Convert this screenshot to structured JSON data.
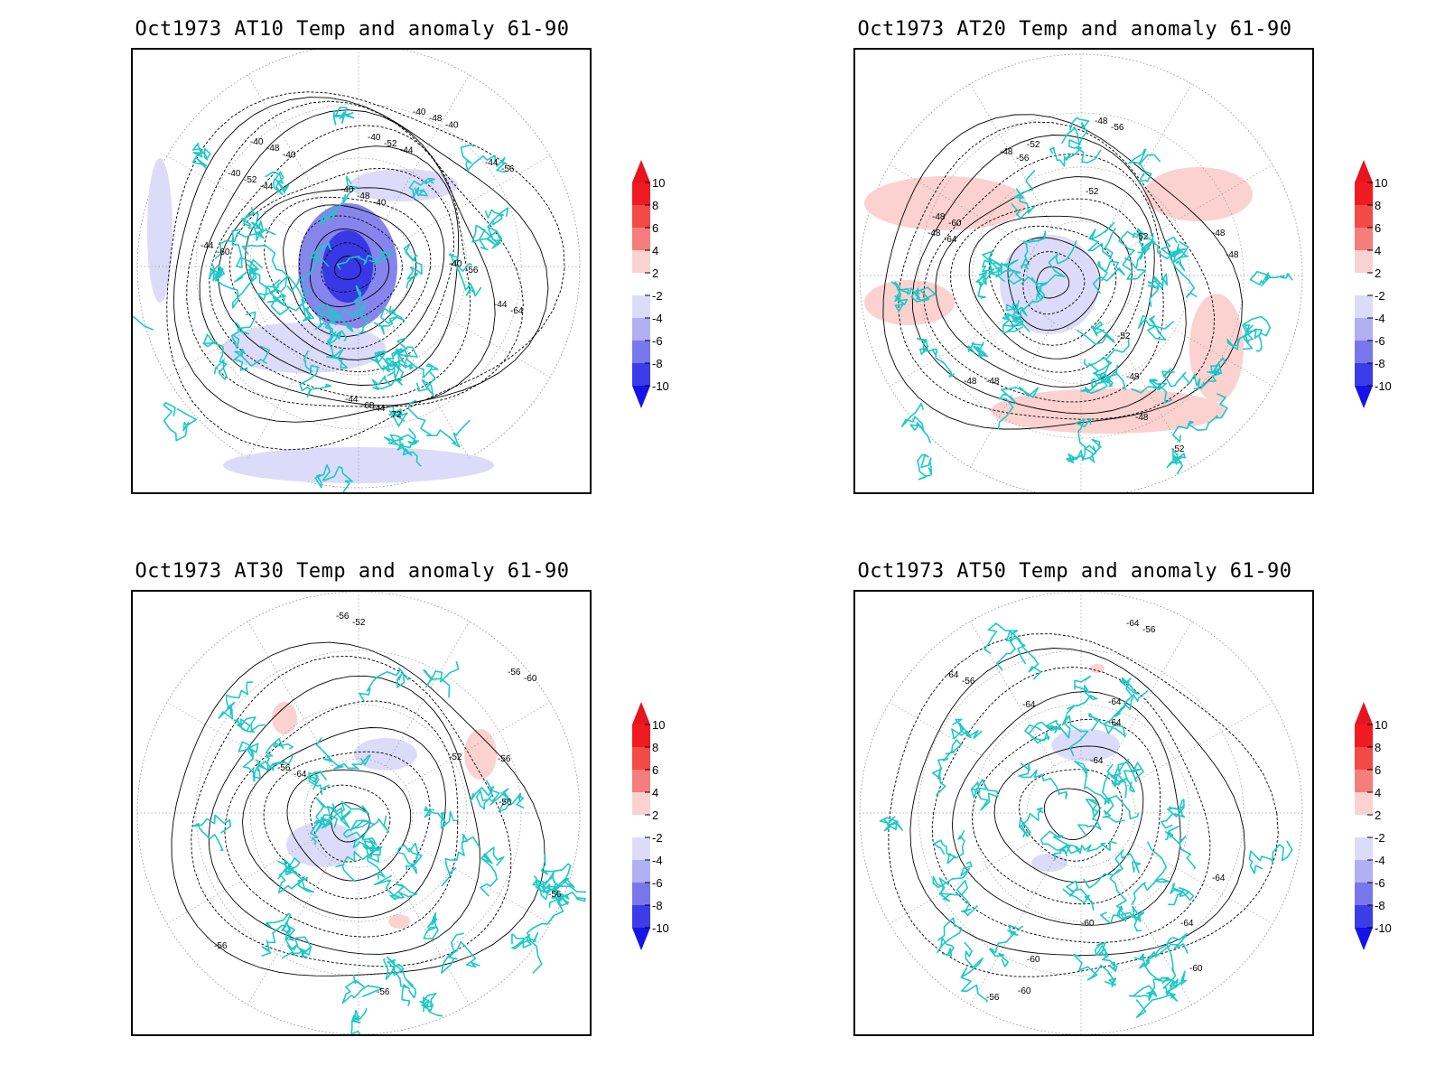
{
  "figure": {
    "panels": [
      {
        "title": "Oct1973 AT10 Temp and anomaly 61-90",
        "contour_labels": [
          "-40",
          "-40",
          "-40",
          "-40",
          "-40",
          "-40",
          "-44",
          "-44",
          "-44",
          "-44",
          "-44",
          "-48",
          "-48",
          "-48",
          "-52",
          "-52",
          "-56",
          "-56",
          "-60",
          "-64",
          "-68",
          "-72",
          "-40",
          "-40",
          "-40",
          "-44",
          "-44"
        ],
        "anomaly_shading": "negative"
      },
      {
        "title": "Oct1973 AT20 Temp and anomaly 61-90",
        "contour_labels": [
          "-48",
          "-48",
          "-48",
          "-48",
          "-48",
          "-48",
          "-48",
          "-48",
          "-48",
          "-48",
          "-52",
          "-52",
          "-52",
          "-52",
          "-52",
          "-56",
          "-56",
          "-60",
          "-64"
        ],
        "anomaly_shading": "mixed"
      },
      {
        "title": "Oct1973 AT30 Temp and anomaly 61-90",
        "contour_labels": [
          "-56",
          "-56",
          "-56",
          "-56",
          "-56",
          "-56",
          "-56",
          "-56",
          "-52",
          "-52",
          "-60",
          "-64"
        ],
        "anomaly_shading": "mixed"
      },
      {
        "title": "Oct1973 AT50 Temp and anomaly 61-90",
        "contour_labels": [
          "-64",
          "-64",
          "-64",
          "-64",
          "-64",
          "-64",
          "-64",
          "-64",
          "-60",
          "-60",
          "-60",
          "-60",
          "-56",
          "-56",
          "-56"
        ],
        "anomaly_shading": "weak"
      }
    ],
    "colorbar": {
      "labels": [
        "10",
        "8",
        "6",
        "4",
        "2",
        "-2",
        "-4",
        "-6",
        "-8",
        "-10"
      ],
      "colors": [
        "#e8141e",
        "#f0504c",
        "#f47c7a",
        "#f8aaa8",
        "#fbd6d4",
        "#ffffff",
        "#dcdcfa",
        "#b4b4f4",
        "#8c8cee",
        "#5a5ae8",
        "#1414e6"
      ]
    }
  }
}
